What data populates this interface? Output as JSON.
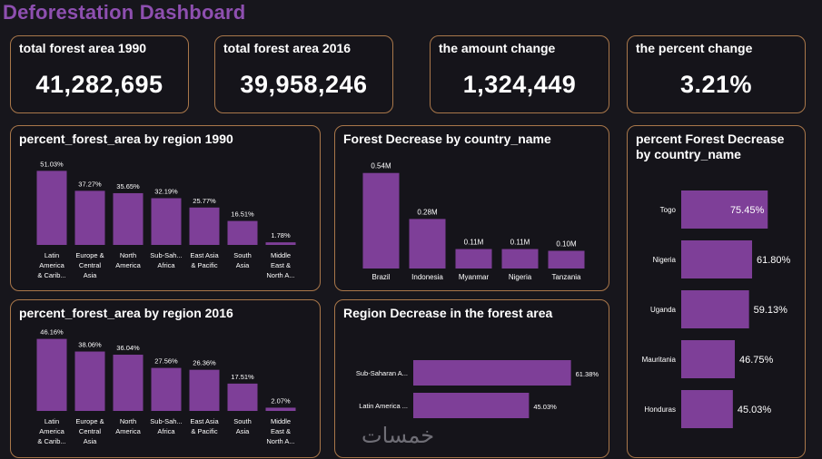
{
  "dashboard": {
    "title": "Deforestation Dashboard"
  },
  "kpis": [
    {
      "label": "total forest area 1990",
      "value": "41,282,695"
    },
    {
      "label": "total forest area 2016",
      "value": "39,958,246"
    },
    {
      "label": "the amount change",
      "value": "1,324,449"
    },
    {
      "label": "the percent change",
      "value": "3.21%"
    }
  ],
  "chart_data": [
    {
      "id": "region1990",
      "type": "bar",
      "title": "percent_forest_area by region 1990",
      "categories": [
        "Latin America & Carib...",
        "Europe & Central Asia",
        "North America",
        "Sub-Saharan Africa",
        "East Asia & Pacific",
        "South Asia",
        "Middle East & North A..."
      ],
      "category_lines": [
        [
          "Latin",
          "America",
          "& Carib..."
        ],
        [
          "Europe &",
          "Central",
          "Asia"
        ],
        [
          "North",
          "America"
        ],
        [
          "Sub-Sah...",
          "Africa"
        ],
        [
          "East Asia",
          "& Pacific"
        ],
        [
          "South",
          "Asia"
        ],
        [
          "Middle",
          "East &",
          "North A..."
        ]
      ],
      "values": [
        51.03,
        37.27,
        35.65,
        32.19,
        25.77,
        16.51,
        1.78
      ],
      "labels": [
        "51.03%",
        "37.27%",
        "35.65%",
        "32.19%",
        "25.77%",
        "16.51%",
        "1.78%"
      ],
      "ylim": [
        0,
        55
      ]
    },
    {
      "id": "region2016",
      "type": "bar",
      "title": "percent_forest_area by region 2016",
      "categories": [
        "Latin America & Carib...",
        "Europe & Central Asia",
        "North America",
        "Sub-Saharan Africa",
        "East Asia & Pacific",
        "South Asia",
        "Middle East & North A..."
      ],
      "category_lines": [
        [
          "Latin",
          "America",
          "& Carib..."
        ],
        [
          "Europe &",
          "Central",
          "Asia"
        ],
        [
          "North",
          "America"
        ],
        [
          "Sub-Sah...",
          "Africa"
        ],
        [
          "East Asia",
          "& Pacific"
        ],
        [
          "South",
          "Asia"
        ],
        [
          "Middle",
          "East &",
          "North A..."
        ]
      ],
      "values": [
        46.16,
        38.06,
        36.04,
        27.56,
        26.36,
        17.51,
        2.07
      ],
      "labels": [
        "46.16%",
        "38.06%",
        "36.04%",
        "27.56%",
        "26.36%",
        "17.51%",
        "2.07%"
      ],
      "ylim": [
        0,
        50
      ]
    },
    {
      "id": "countryDecrease",
      "type": "bar",
      "title": "Forest Decrease by country_name",
      "categories": [
        "Brazil",
        "Indonesia",
        "Myanmar",
        "Nigeria",
        "Tanzania"
      ],
      "values": [
        0.54,
        0.28,
        0.11,
        0.11,
        0.1
      ],
      "labels": [
        "0.54M",
        "0.28M",
        "0.11M",
        "0.11M",
        "0.10M"
      ],
      "ylim": [
        0,
        0.6
      ]
    },
    {
      "id": "regionDecrease",
      "type": "bar",
      "orientation": "horizontal",
      "title": "Region Decrease in the forest area",
      "categories": [
        "Sub-Saharan A...",
        "Latin America ..."
      ],
      "values": [
        61.38,
        45.03
      ],
      "labels": [
        "61.38%",
        "45.03%"
      ],
      "xlim": [
        0,
        70
      ]
    },
    {
      "id": "percentCountry",
      "type": "bar",
      "orientation": "horizontal",
      "title": "percent Forest Decrease by country_name",
      "categories": [
        "Togo",
        "Nigeria",
        "Uganda",
        "Mauritania",
        "Honduras"
      ],
      "values": [
        75.45,
        61.8,
        59.13,
        46.75,
        45.03
      ],
      "labels": [
        "75.45%",
        "61.80%",
        "59.13%",
        "46.75%",
        "45.03%"
      ],
      "xlim": [
        0,
        80
      ]
    }
  ],
  "colors": {
    "bar": "#7e3f98",
    "border": "#a9774a",
    "title": "#8e4fb0",
    "background": "#17161c"
  },
  "watermark": "خمسات"
}
